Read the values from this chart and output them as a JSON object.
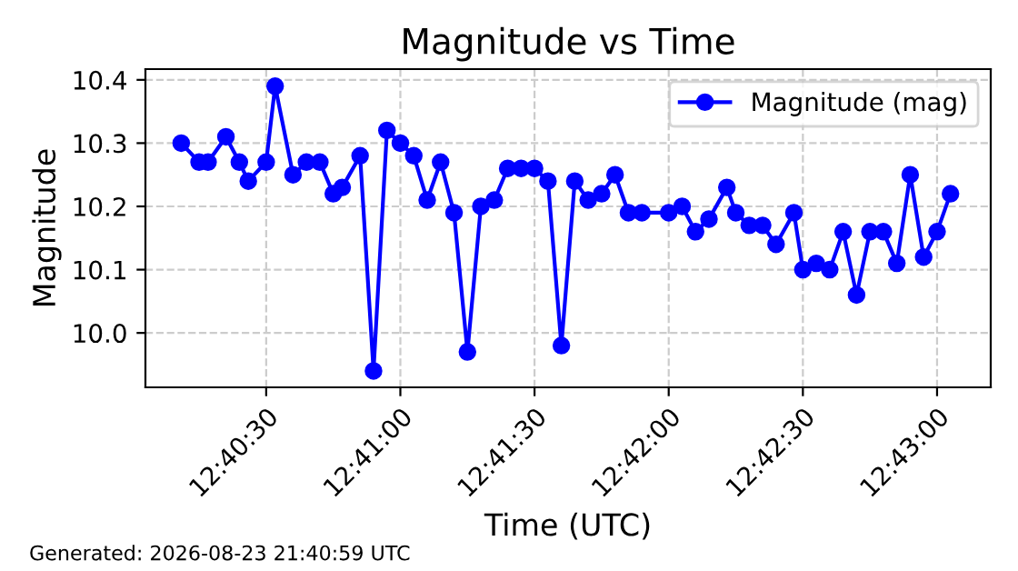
{
  "chart_data": {
    "type": "line",
    "title": "Magnitude vs Time",
    "xlabel": "Time (UTC)",
    "ylabel": "Magnitude",
    "annotations": [
      "Generated: 2026-08-23 21:40:59 UTC"
    ],
    "x": [
      "2026-08-23T12:40:11",
      "2026-08-23T12:40:15",
      "2026-08-23T12:40:17",
      "2026-08-23T12:40:21",
      "2026-08-23T12:40:24",
      "2026-08-23T12:40:26",
      "2026-08-23T12:40:30",
      "2026-08-23T12:40:32",
      "2026-08-23T12:40:36",
      "2026-08-23T12:40:39",
      "2026-08-23T12:40:42",
      "2026-08-23T12:40:45",
      "2026-08-23T12:40:47",
      "2026-08-23T12:40:51",
      "2026-08-23T12:40:54",
      "2026-08-23T12:40:57",
      "2026-08-23T12:41:00",
      "2026-08-23T12:41:03",
      "2026-08-23T12:41:06",
      "2026-08-23T12:41:09",
      "2026-08-23T12:41:12",
      "2026-08-23T12:41:15",
      "2026-08-23T12:41:18",
      "2026-08-23T12:41:21",
      "2026-08-23T12:41:24",
      "2026-08-23T12:41:27",
      "2026-08-23T12:41:30",
      "2026-08-23T12:41:33",
      "2026-08-23T12:41:36",
      "2026-08-23T12:41:39",
      "2026-08-23T12:41:42",
      "2026-08-23T12:41:45",
      "2026-08-23T12:41:48",
      "2026-08-23T12:41:51",
      "2026-08-23T12:41:54",
      "2026-08-23T12:42:00",
      "2026-08-23T12:42:03",
      "2026-08-23T12:42:06",
      "2026-08-23T12:42:09",
      "2026-08-23T12:42:13",
      "2026-08-23T12:42:15",
      "2026-08-23T12:42:18",
      "2026-08-23T12:42:21",
      "2026-08-23T12:42:24",
      "2026-08-23T12:42:28",
      "2026-08-23T12:42:30",
      "2026-08-23T12:42:33",
      "2026-08-23T12:42:36",
      "2026-08-23T12:42:39",
      "2026-08-23T12:42:42",
      "2026-08-23T12:42:45",
      "2026-08-23T12:42:48",
      "2026-08-23T12:42:51",
      "2026-08-23T12:42:54",
      "2026-08-23T12:42:57",
      "2026-08-23T12:43:00",
      "2026-08-23T12:43:03"
    ],
    "series": [
      {
        "name": "Magnitude (mag)",
        "color": "#0000ff",
        "values": [
          10.3,
          10.27,
          10.27,
          10.31,
          10.27,
          10.24,
          10.27,
          10.39,
          10.25,
          10.27,
          10.27,
          10.22,
          10.23,
          10.28,
          9.94,
          10.32,
          10.3,
          10.28,
          10.21,
          10.27,
          10.19,
          9.97,
          10.2,
          10.21,
          10.26,
          10.26,
          10.26,
          10.24,
          9.98,
          10.24,
          10.21,
          10.22,
          10.25,
          10.19,
          10.19,
          10.19,
          10.2,
          10.16,
          10.18,
          10.23,
          10.19,
          10.17,
          10.17,
          10.14,
          10.19,
          10.1,
          10.11,
          10.1,
          10.16,
          10.06,
          10.16,
          10.16,
          10.11,
          10.25,
          10.12,
          10.16,
          10.22
        ]
      }
    ],
    "xlim": [
      "2026-08-23T12:40:03",
      "2026-08-23T12:43:12"
    ],
    "xticks": [
      {
        "value": "2026-08-23T12:40:30",
        "label": "12:40:30"
      },
      {
        "value": "2026-08-23T12:41:00",
        "label": "12:41:00"
      },
      {
        "value": "2026-08-23T12:41:30",
        "label": "12:41:30"
      },
      {
        "value": "2026-08-23T12:42:00",
        "label": "12:42:00"
      },
      {
        "value": "2026-08-23T12:42:30",
        "label": "12:42:30"
      },
      {
        "value": "2026-08-23T12:43:00",
        "label": "12:43:00"
      }
    ],
    "ylim": [
      9.914,
      10.417
    ],
    "yticks": [
      {
        "value": 10.0,
        "label": "10.0"
      },
      10.1,
      10.2,
      10.3,
      10.4
    ],
    "grid": true,
    "legend": "top right",
    "marker": "circle",
    "line_style": "solid"
  }
}
